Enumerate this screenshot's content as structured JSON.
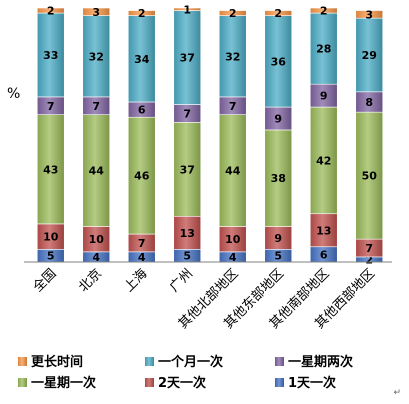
{
  "chart_data": {
    "type": "bar",
    "stacked": true,
    "percent": true,
    "title": "",
    "xlabel": "",
    "ylabel": "%",
    "ylim": [
      0,
      100
    ],
    "grid": false,
    "legend_position": "bottom",
    "categories": [
      "全国",
      "北京",
      "上海",
      "广州",
      "其他北部地区",
      "其他东部地区",
      "其他南部地区",
      "其他西部地区"
    ],
    "series": [
      {
        "name": "1天一次",
        "color": "#4472c4",
        "values": [
          5,
          4,
          4,
          5,
          4,
          5,
          6,
          2
        ]
      },
      {
        "name": "2天一次",
        "color": "#c0504d",
        "values": [
          10,
          10,
          7,
          13,
          10,
          9,
          13,
          7
        ]
      },
      {
        "name": "一星期一次",
        "color": "#9bbb59",
        "values": [
          43,
          44,
          46,
          37,
          44,
          38,
          42,
          50
        ]
      },
      {
        "name": "一星期两次",
        "color": "#8064a2",
        "values": [
          7,
          7,
          6,
          7,
          7,
          9,
          9,
          8
        ]
      },
      {
        "name": "一个月一次",
        "color": "#4bacc6",
        "values": [
          33,
          32,
          34,
          37,
          32,
          36,
          28,
          29
        ]
      },
      {
        "name": "更长时间",
        "color": "#f79646",
        "values": [
          2,
          3,
          2,
          1,
          2,
          2,
          2,
          3
        ]
      }
    ],
    "legend_order": [
      "更长时间",
      "一个月一次",
      "一星期两次",
      "一星期一次",
      "2天一次",
      "1天一次"
    ]
  },
  "corner_mark": "↵"
}
